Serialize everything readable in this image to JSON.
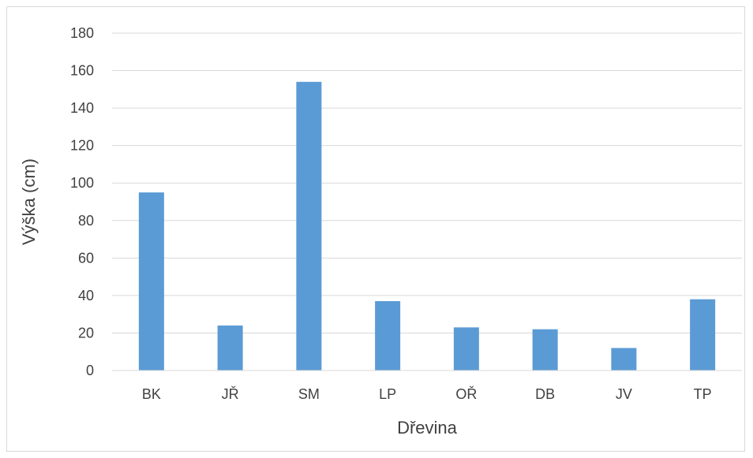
{
  "chart_data": {
    "type": "bar",
    "title": "",
    "xlabel": "Dřevina",
    "ylabel": "Výška (cm)",
    "categories": [
      "BK",
      "JŘ",
      "SM",
      "LP",
      "OŘ",
      "DB",
      "JV",
      "TP"
    ],
    "values": [
      95,
      24,
      154,
      37,
      23,
      22,
      12,
      38
    ],
    "ylim": [
      0,
      180
    ],
    "yticks": [
      0,
      20,
      40,
      60,
      80,
      100,
      120,
      140,
      160,
      180
    ],
    "grid": true,
    "legend": "none",
    "bar_color": "#5b9bd5",
    "grid_color": "#d9d9d9",
    "axis_color": "#d9d9d9",
    "text_color": "#404040"
  }
}
